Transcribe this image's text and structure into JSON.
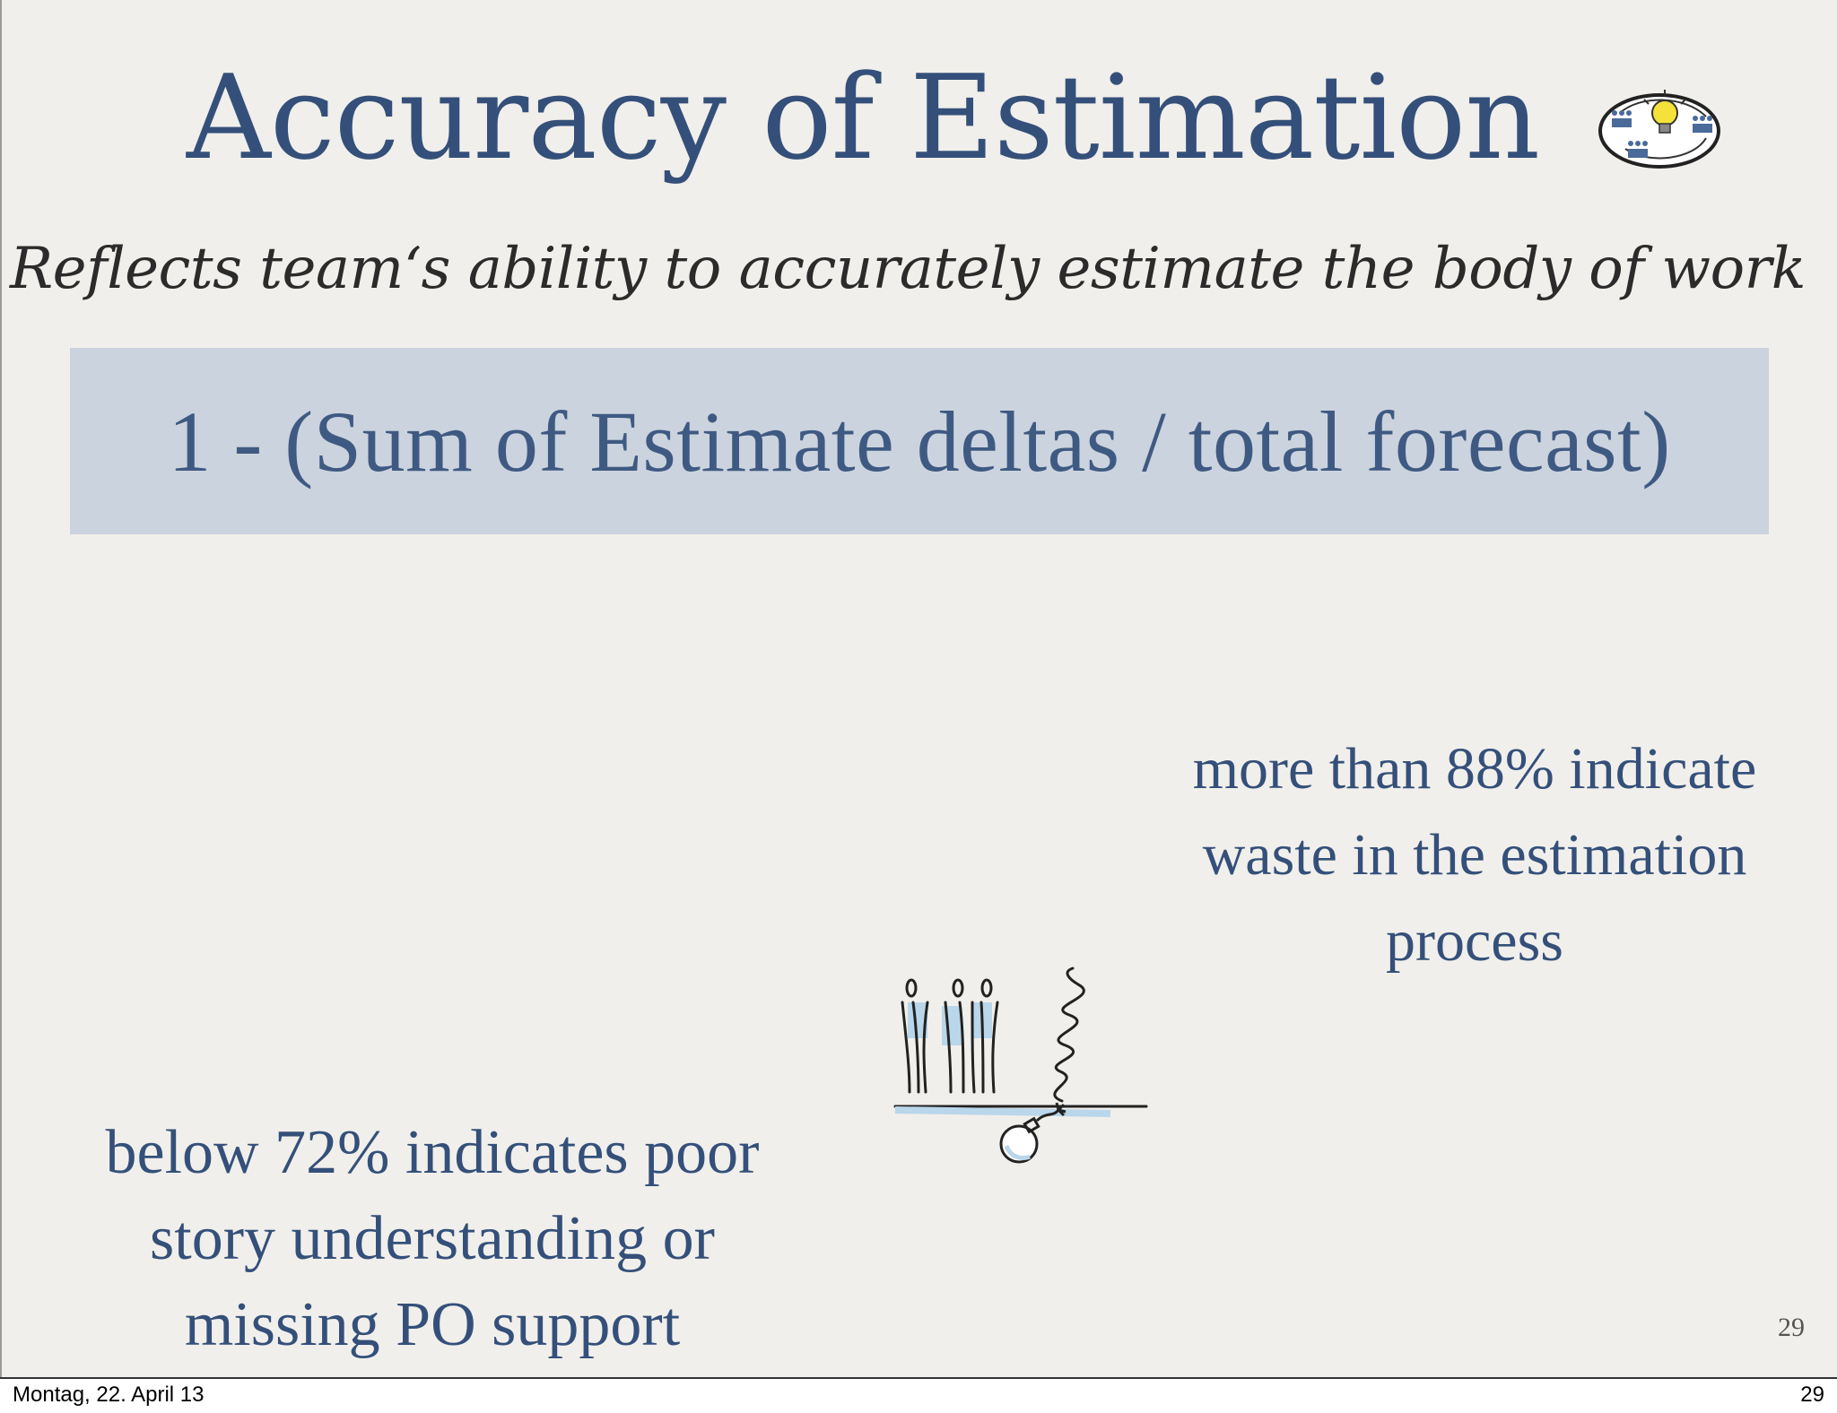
{
  "slide": {
    "title": "Accuracy of Estimation",
    "subtitle": "Reflects team‘s ability to accurately estimate the body of work",
    "formula": "1 - (Sum of Estimate deltas  /  total forecast)",
    "note_right": {
      "lines": [
        "more than 88% indicate",
        "waste in the estimation",
        "process"
      ]
    },
    "note_left": {
      "lines": [
        "below 72% indicates poor",
        "story understanding or",
        "missing PO support"
      ]
    },
    "slide_number": "29",
    "logo_icon": "team-lightbulb-cycle-icon",
    "sketch_icon": "team-on-ice-with-bomb-sketch",
    "colors": {
      "title": "#34507a",
      "formula_bg": "#cbd3de",
      "background": "#f1efeb"
    }
  },
  "footer": {
    "date": "Montag, 22. April 13",
    "page": "29"
  }
}
